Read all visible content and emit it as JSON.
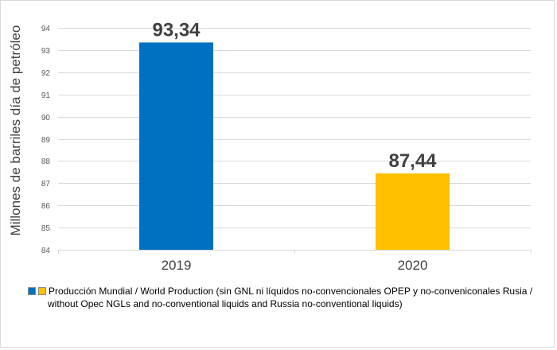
{
  "chart_data": {
    "type": "bar",
    "title": "",
    "xlabel": "",
    "ylabel": "Millones de barriles día de petróleo",
    "categories": [
      "2019",
      "2020"
    ],
    "values": [
      93.34,
      87.44
    ],
    "data_labels": [
      "93,34",
      "87,44"
    ],
    "colors": [
      "#0070C0",
      "#FFC000"
    ],
    "ylim": [
      84,
      94
    ],
    "yticks": [
      84,
      85,
      86,
      87,
      88,
      89,
      90,
      91,
      92,
      93,
      94
    ],
    "grid": true,
    "legend_position": "bottom",
    "legend": {
      "line1": "Producción Mundial / World Production (sin GNL ni líquidos no-convencionales OPEP y no-conveniconales Rusia /",
      "line2": "without Opec NGLs and no-conventional liquids and Russia no-conventional liquids)"
    }
  }
}
